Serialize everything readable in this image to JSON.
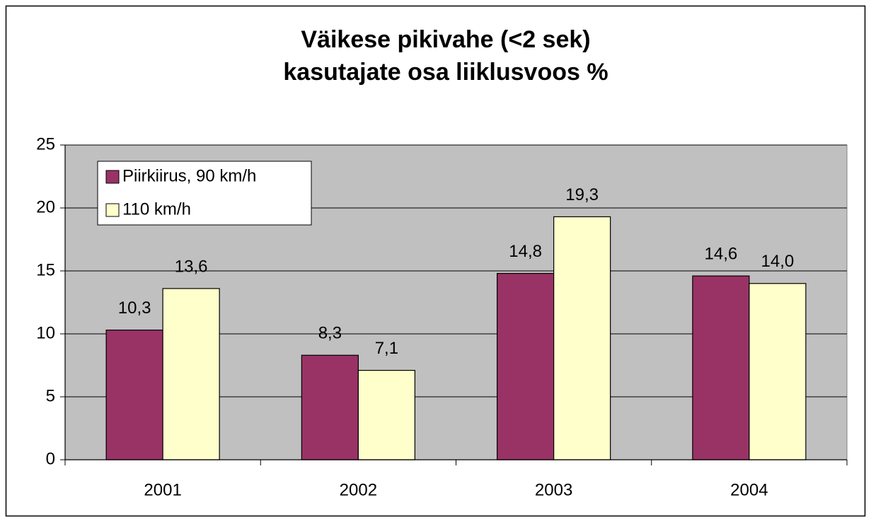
{
  "chart_data": {
    "type": "bar",
    "title": [
      "Väikese pikivahe (<2 sek)",
      "kasutajate osa liiklusvoos %"
    ],
    "categories": [
      "2001",
      "2002",
      "2003",
      "2004"
    ],
    "series": [
      {
        "name": "Piirkiirus, 90 km/h",
        "color": "#993366",
        "values": [
          10.3,
          8.3,
          14.8,
          14.6
        ],
        "value_labels": [
          "10,3",
          "8,3",
          "14,8",
          "14,6"
        ]
      },
      {
        "name": "110 km/h",
        "color": "#FFFFCC",
        "values": [
          13.6,
          7.1,
          19.3,
          14.0
        ],
        "value_labels": [
          "13,6",
          "7,1",
          "19,3",
          "14,0"
        ]
      }
    ],
    "ylim": [
      0,
      25
    ],
    "yticks": [
      0,
      5,
      10,
      15,
      20,
      25
    ],
    "grid": true,
    "plot_background": "#C0C0C0",
    "legend": "upper left"
  }
}
